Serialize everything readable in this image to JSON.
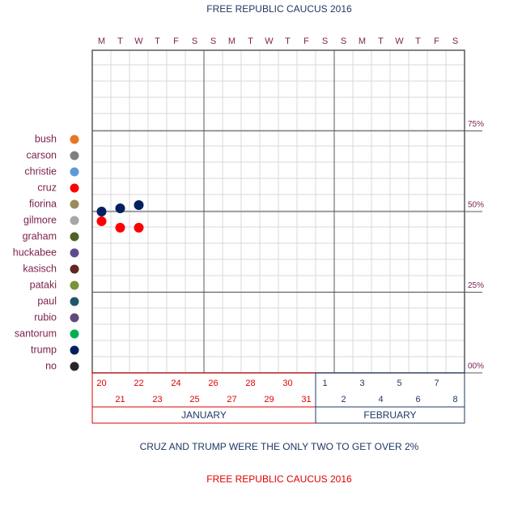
{
  "chart_data": {
    "type": "scatter",
    "title": "FREE REPUBLIC CAUCUS 2016",
    "subtitle": "CRUZ AND TRUMP WERE THE ONLY TWO TO GET OVER 2%",
    "footer": "FREE REPUBLIC CAUCUS 2016",
    "weekdays": [
      "M",
      "T",
      "W",
      "T",
      "F",
      "S",
      "S",
      "M",
      "T",
      "W",
      "T",
      "F",
      "S",
      "S",
      "M",
      "T",
      "W",
      "T",
      "F",
      "S"
    ],
    "categories": [
      "20",
      "21",
      "22",
      "23",
      "24",
      "25",
      "26",
      "27",
      "28",
      "29",
      "30",
      "31",
      "1",
      "2",
      "3",
      "4",
      "5",
      "6",
      "7",
      "8"
    ],
    "months": [
      {
        "name": "JANUARY",
        "days": 12,
        "color": "#e00000"
      },
      {
        "name": "FEBRUARY",
        "days": 8,
        "color": "#1f3864"
      }
    ],
    "ylim": [
      0,
      100
    ],
    "yticks": [
      {
        "value": 0,
        "label": "00%"
      },
      {
        "value": 25,
        "label": "25%"
      },
      {
        "value": 50,
        "label": "50%"
      },
      {
        "value": 75,
        "label": "75%"
      }
    ],
    "grid": true,
    "legend": "left",
    "series": [
      {
        "name": "bush",
        "color": "#e87722"
      },
      {
        "name": "carson",
        "color": "#7f7f7f"
      },
      {
        "name": "christie",
        "color": "#5b9bd5"
      },
      {
        "name": "cruz",
        "color": "#ff0000",
        "values": [
          47,
          45,
          45,
          null,
          null,
          null,
          null,
          null,
          null,
          null,
          null,
          null,
          null,
          null,
          null,
          null,
          null,
          null,
          null,
          null
        ]
      },
      {
        "name": "fiorina",
        "color": "#9c8b5a"
      },
      {
        "name": "gilmore",
        "color": "#a6a6a6"
      },
      {
        "name": "graham",
        "color": "#4f6228"
      },
      {
        "name": "huckabee",
        "color": "#5f4b8b"
      },
      {
        "name": "kasisch",
        "color": "#632523"
      },
      {
        "name": "pataki",
        "color": "#77933c"
      },
      {
        "name": "paul",
        "color": "#215868"
      },
      {
        "name": "rubio",
        "color": "#604a7b"
      },
      {
        "name": "santorum",
        "color": "#00b050"
      },
      {
        "name": "trump",
        "color": "#002060",
        "values": [
          50,
          51,
          52,
          null,
          null,
          null,
          null,
          null,
          null,
          null,
          null,
          null,
          null,
          null,
          null,
          null,
          null,
          null,
          null,
          null
        ]
      },
      {
        "name": "no",
        "color": "#262626"
      }
    ]
  }
}
